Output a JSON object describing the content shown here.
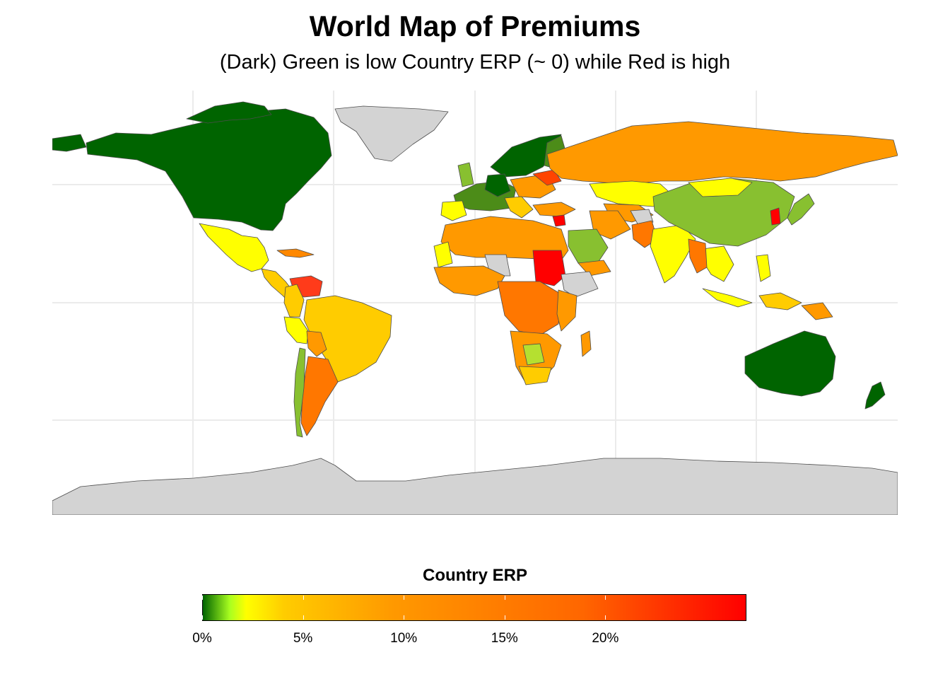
{
  "title": "World Map of Premiums",
  "subtitle": "(Dark) Green is low Country ERP (~ 0) while Red is high",
  "colors": {
    "background": "#ffffff",
    "grid": "#ebebeb",
    "no_data": "#d3d3d3",
    "border": "#4d4d4d",
    "scale_low": "#006400",
    "scale_mid_yellow": "#ffff00",
    "scale_mid_orange": "#ff9900",
    "scale_high": "#ff0000"
  },
  "legend": {
    "title": "Country ERP",
    "range": [
      0,
      27
    ],
    "ticks": [
      {
        "value": 0,
        "label": "0%"
      },
      {
        "value": 5,
        "label": "5%"
      },
      {
        "value": 10,
        "label": "10%"
      },
      {
        "value": 15,
        "label": "15%"
      },
      {
        "value": 20,
        "label": "20%"
      }
    ]
  }
}
